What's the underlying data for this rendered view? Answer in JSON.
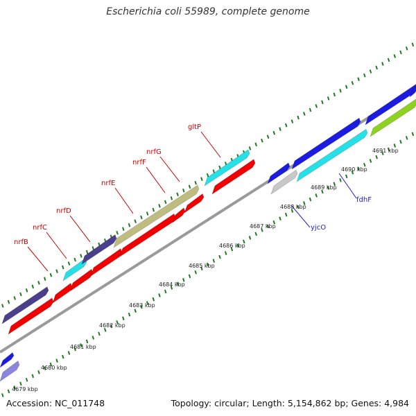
{
  "title": "Escherichia coli 55989, complete genome",
  "accession_text": "Accession: NC_011748",
  "summary_text": "Topology: circular; Length: 5,154,862 bp; Genes: 4,984",
  "colors": {
    "red": "#f20000",
    "cyan": "#25e0e6",
    "navy": "#4a3f8c",
    "olive": "#bfbc80",
    "blue": "#1c1ce0",
    "gray": "#c8c8c8",
    "green": "#8cd21e",
    "lavender": "#8a86dd",
    "label_red": "#cc0000",
    "label_blue": "#2020cc",
    "tick_green": "#1f7a1f",
    "backbone": "#999999"
  },
  "kbp_labels": [
    "4679 kbp",
    "4680 kbp",
    "4681 kbp",
    "4682 kbp",
    "4683 kbp",
    "4684 kbp",
    "4685 kbp",
    "4686 kbp",
    "4687 kbp",
    "4688 kbp",
    "4689 kbp",
    "4690 kbp",
    "4691 kbp"
  ],
  "gene_labels": [
    {
      "name": "nrfB",
      "color": "red"
    },
    {
      "name": "nrfC",
      "color": "red"
    },
    {
      "name": "nrfD",
      "color": "red"
    },
    {
      "name": "nrfE",
      "color": "red"
    },
    {
      "name": "nrfF",
      "color": "red"
    },
    {
      "name": "nrfG",
      "color": "red"
    },
    {
      "name": "gltP",
      "color": "red"
    },
    {
      "name": "yjcO",
      "color": "blue"
    },
    {
      "name": "fdhF",
      "color": "blue"
    }
  ]
}
